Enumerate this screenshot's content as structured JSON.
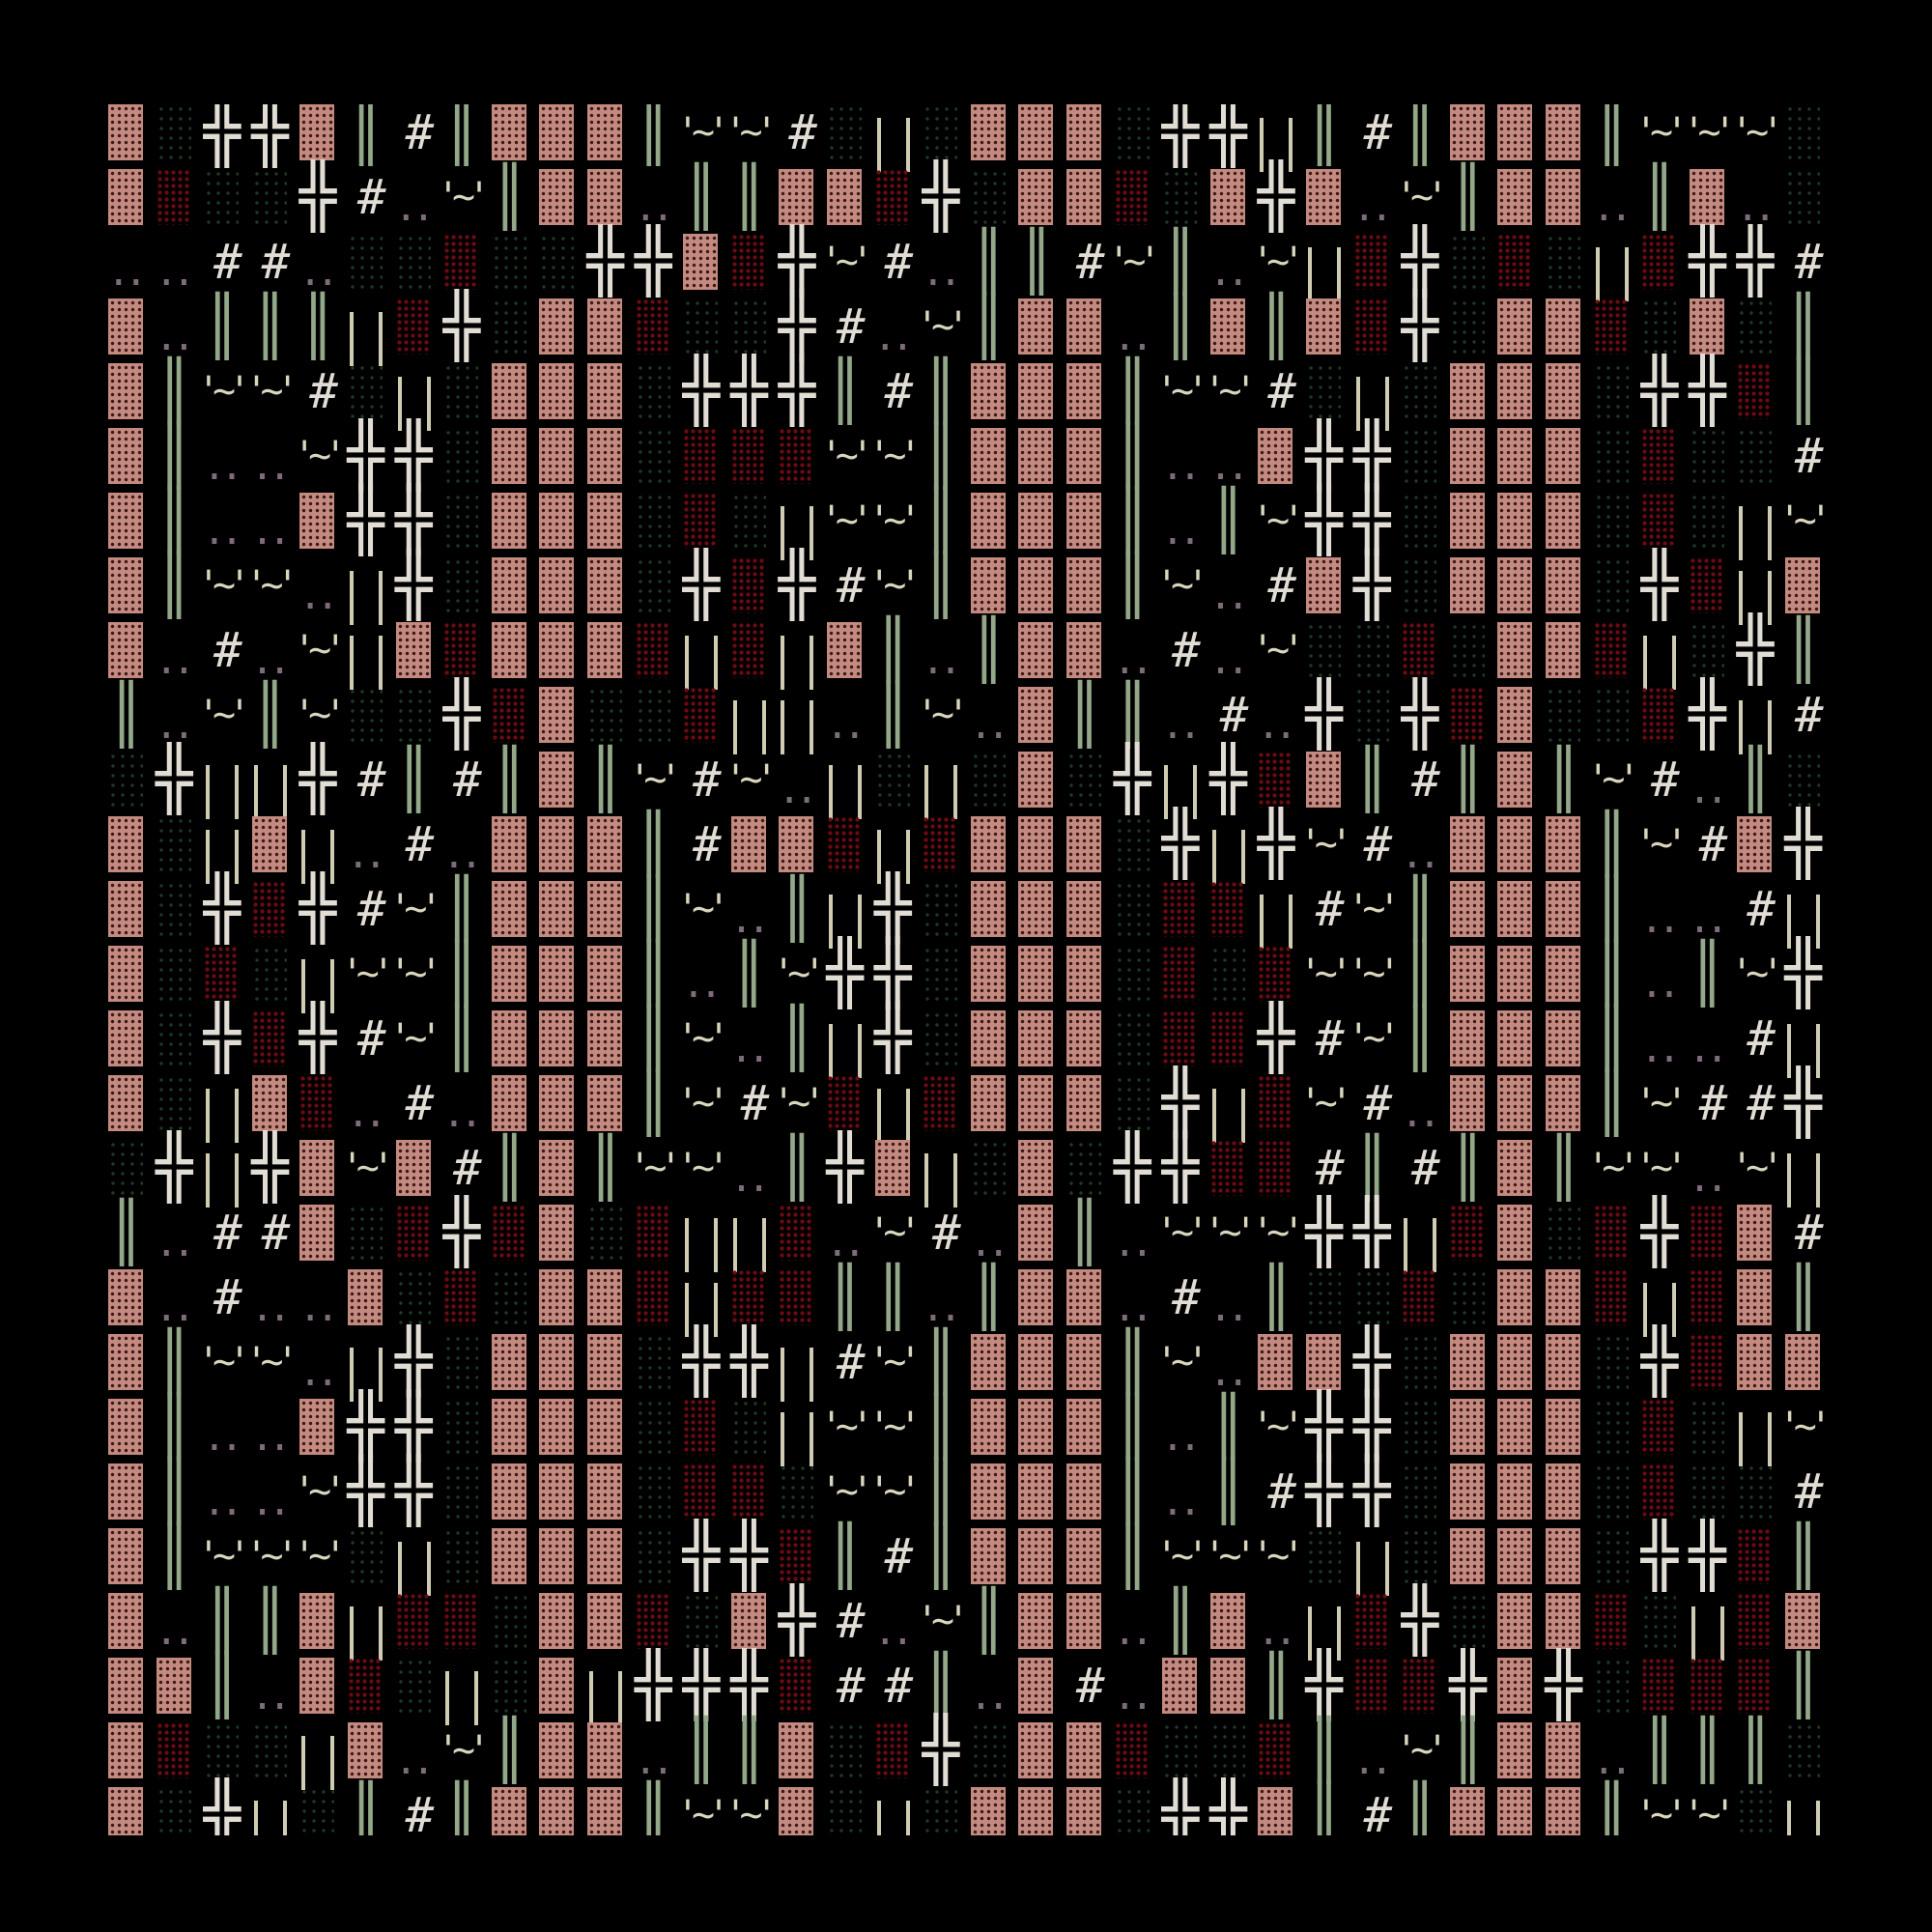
{
  "legend": {
    "B": {
      "type": "block",
      "color": "#c48a80"
    },
    "g": {
      "type": "dots",
      "color": "#1d3a28"
    },
    "r": {
      "type": "dots",
      "color": "#6e0a12"
    },
    "X": {
      "glyph": "╬",
      "color": "#e2ddd4"
    },
    "H": {
      "glyph": "║",
      "color": "#93a889"
    },
    "#": {
      "glyph": "#",
      "color": "#e2ddd4"
    },
    ".": {
      "glyph": "..",
      "color": "#7d6c7c"
    },
    "~": {
      "glyph": "'~'",
      "color": "#d9d5be"
    },
    "U": {
      "glyph": "| |",
      "color": "#d0ccb2"
    }
  },
  "rows": [
    "BgXXBH#HBBBH~~#gUgBBBgXXUH#HBBBH~~~g",
    "BrggX#.~HBB.HHBBrXgBBrgBXB.~HBB.HB.g",
    "..##.ggrggXXBrX~#.HH#~H.~UrXgrgUrXX#",
    "B.HHHUrXgBBrggX#.~HBB.HBHBrXgBBrgBgH",
    "BH~~#gUgBBBgXXXH#HBBBH~~#gUgBBBgXXrH",
    "BH..~XXgBBBgrrr~~HBBBH..BXXgBBBgrgg#",
    "BH..BXXgBBBgrgU~~HBBBH.H~XXgBBBgrgU~",
    "BH~~.UXgBBBgXrX#~HBBBH~.#BXgBBBgXrUB",
    "B.#.~UBrBBBrUrUBH.HBB.#.~ggrgBBrUgXH",
    "H.~H~ggXrBggrUU.H~.BHH.#.XgXrBggrXU#",
    "gXUUX#H#HBH~#~.UgUgBgXUXrBH#HBH~#.Hg",
    "BgUBU.#.BBBH#BBrUrBBBgXUX~#.BBBH~#BX",
    "BgXrX#~HBBBH~.HUXgBBBgrrU#~HBBBH..#U",
    "BgrgU~~HBBBH.H~XXgBBBgrgr~~HBBBH.H~X",
    "BgXrX#~HBBBH~.HUXgBBBgrrX#~HBBBH..#U",
    "BgUBr.#.BBBH~#~rUrBBBgXUr~#.BBBH~##X",
    "gXUXB~B#HBH~~.HXBUgBgXXrr#H#HBH~~.~U",
    "H.##BgrXrBgrUUr.~#.BH.~~~XXUrBgrXrB#",
    "B.#..BgrgBBrUrrHH.HBB.#.HggrgBBrUrBH",
    "BH~~.UXgBBBgXXU#~HBBBH~.BBXgBBBgXrBB",
    "BH..BXXgBBBgrgU~~HBBBH.H~XXgBBBgrgU~",
    "BH..~XXgBBBgrrg~~HBBBH.H#XXgBBBgrgg#",
    "BH~~~gUgBBBgXXrH#HBBBH~~~gUgBBBgXXrH",
    "B.HHBUrrgBBrgBX#.~HBB.HB.UrXgBBrgUrB",
    "BBH.BrgUgBUXXXr##H.B#.BBHXrrXBXgrrrH",
    "BrggUB.~HBB.HHBgrXgBBrggrH.~HBB.HHHg",
    "BgXUgH#HBBBH~~BgUgBBBgXXBH#HBBBH~~gU"
  ]
}
